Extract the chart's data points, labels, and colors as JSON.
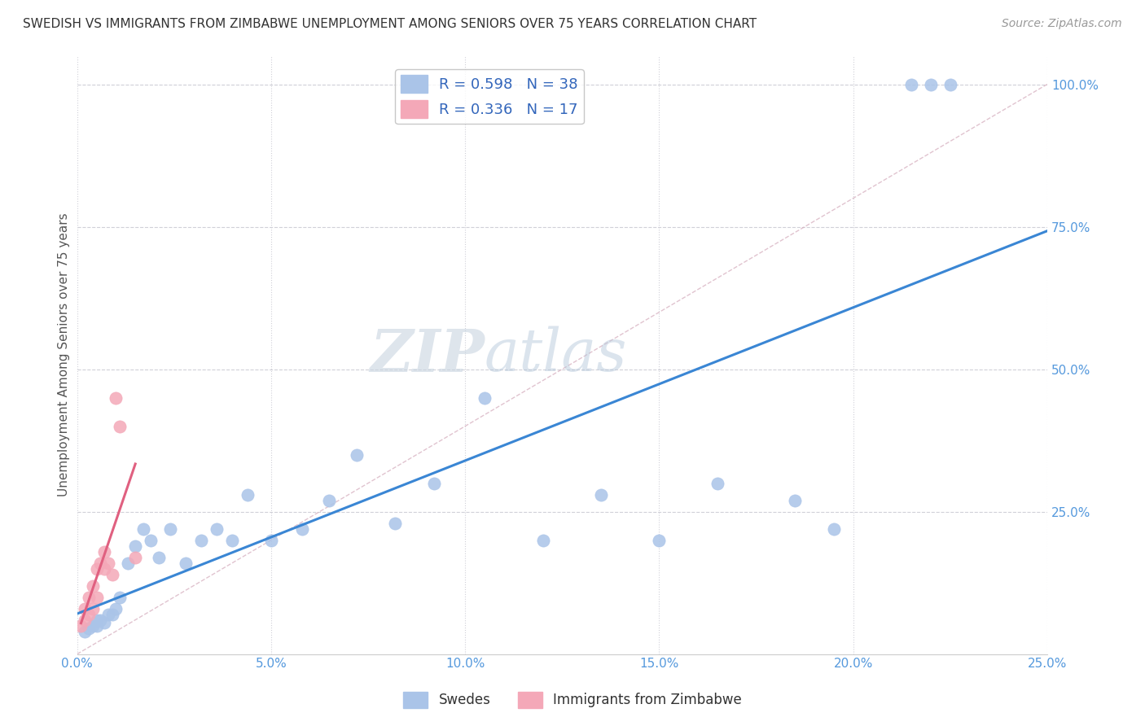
{
  "title": "SWEDISH VS IMMIGRANTS FROM ZIMBABWE UNEMPLOYMENT AMONG SENIORS OVER 75 YEARS CORRELATION CHART",
  "source": "Source: ZipAtlas.com",
  "ylabel": "Unemployment Among Seniors over 75 years",
  "xlim": [
    0.0,
    0.25
  ],
  "ylim": [
    0.0,
    1.05
  ],
  "swedes_R": 0.598,
  "swedes_N": 38,
  "zimbabwe_R": 0.336,
  "zimbabwe_N": 17,
  "swedes_color": "#aac4e8",
  "zimbabwe_color": "#f4a8b8",
  "trendline_swedes_color": "#3a86d4",
  "trendline_zimbabwe_color": "#e06080",
  "ref_line_color": "#d0a0b0",
  "watermark_color": "#c8d8e8",
  "swedes_x": [
    0.002,
    0.003,
    0.004,
    0.005,
    0.005,
    0.006,
    0.007,
    0.008,
    0.009,
    0.01,
    0.011,
    0.013,
    0.015,
    0.017,
    0.019,
    0.021,
    0.024,
    0.028,
    0.032,
    0.036,
    0.04,
    0.044,
    0.05,
    0.058,
    0.065,
    0.072,
    0.082,
    0.092,
    0.105,
    0.12,
    0.135,
    0.15,
    0.165,
    0.185,
    0.195,
    0.215,
    0.22,
    0.225
  ],
  "swedes_y": [
    0.04,
    0.045,
    0.05,
    0.05,
    0.06,
    0.06,
    0.055,
    0.07,
    0.07,
    0.08,
    0.1,
    0.16,
    0.19,
    0.22,
    0.2,
    0.17,
    0.22,
    0.16,
    0.2,
    0.22,
    0.2,
    0.28,
    0.2,
    0.22,
    0.27,
    0.35,
    0.23,
    0.3,
    0.45,
    0.2,
    0.28,
    0.2,
    0.3,
    0.27,
    0.22,
    1.0,
    1.0,
    1.0
  ],
  "zimbabwe_x": [
    0.001,
    0.002,
    0.002,
    0.003,
    0.003,
    0.004,
    0.004,
    0.005,
    0.005,
    0.006,
    0.007,
    0.007,
    0.008,
    0.009,
    0.01,
    0.011,
    0.015
  ],
  "zimbabwe_y": [
    0.05,
    0.06,
    0.08,
    0.07,
    0.1,
    0.08,
    0.12,
    0.1,
    0.15,
    0.16,
    0.15,
    0.18,
    0.16,
    0.14,
    0.45,
    0.4,
    0.17
  ]
}
